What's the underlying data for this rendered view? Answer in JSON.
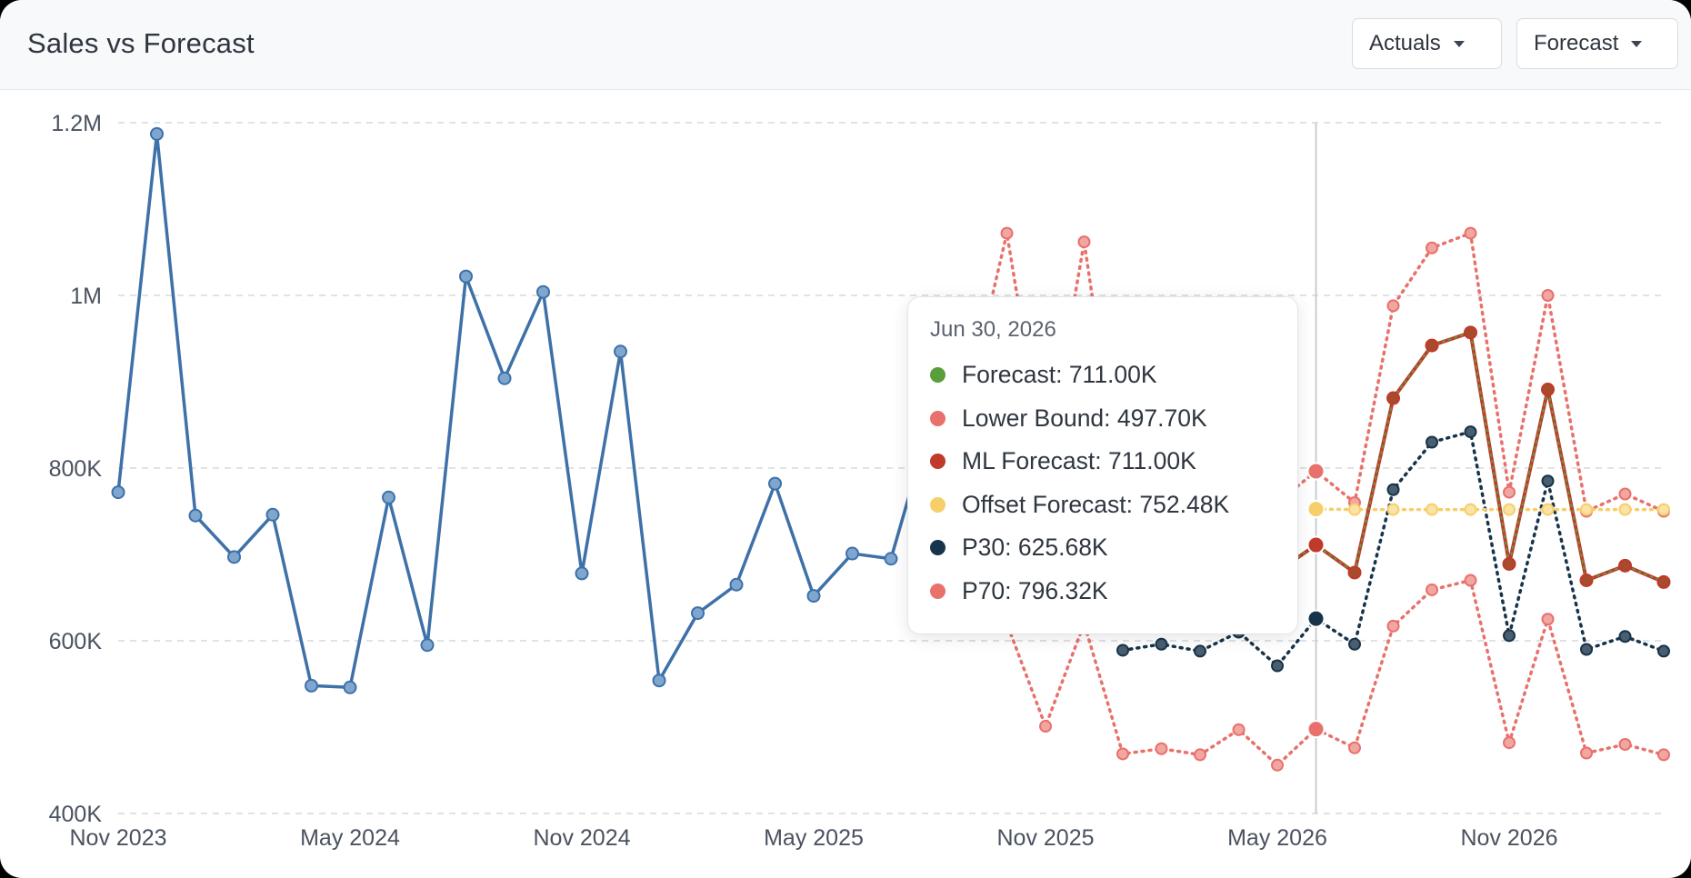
{
  "header": {
    "title": "Sales vs Forecast",
    "actuals_label": "Actuals",
    "forecast_label": "Forecast"
  },
  "colors": {
    "actuals": "#3e71a8",
    "forecast": "#5a9e3a",
    "lower_bound": "#e8716c",
    "ml_forecast": "#c0392b",
    "offset_forecast": "#f6cf6b",
    "p30": "#17344a",
    "p70": "#e8716c",
    "grid": "#d5d8dc",
    "axis_text": "#4a5260"
  },
  "tooltip": {
    "date": "Jun 30, 2026",
    "rows": [
      {
        "text": "Forecast: 711.00K",
        "color": "#5a9e3a"
      },
      {
        "text": "Lower Bound: 497.70K",
        "color": "#e8716c"
      },
      {
        "text": "ML Forecast: 711.00K",
        "color": "#c0392b"
      },
      {
        "text": "Offset Forecast: 752.48K",
        "color": "#f6cf6b"
      },
      {
        "text": "P30: 625.68K",
        "color": "#17344a"
      },
      {
        "text": "P70: 796.32K",
        "color": "#e8716c"
      }
    ]
  },
  "chart_data": {
    "type": "line",
    "title": "Sales vs Forecast",
    "x_range": [
      "2023-11",
      "2027-03"
    ],
    "y_range": [
      400000,
      1200000
    ],
    "y_ticks": [
      {
        "value": 400000,
        "label": "400K"
      },
      {
        "value": 600000,
        "label": "600K"
      },
      {
        "value": 800000,
        "label": "800K"
      },
      {
        "value": 1000000,
        "label": "1M"
      },
      {
        "value": 1200000,
        "label": "1.2M"
      }
    ],
    "x_ticks": [
      {
        "value": "2023-11",
        "label": "Nov 2023"
      },
      {
        "value": "2024-05",
        "label": "May 2024"
      },
      {
        "value": "2024-11",
        "label": "Nov 2024"
      },
      {
        "value": "2025-05",
        "label": "May 2025"
      },
      {
        "value": "2025-11",
        "label": "Nov 2025"
      },
      {
        "value": "2026-05",
        "label": "May 2026"
      },
      {
        "value": "2026-11",
        "label": "Nov 2026"
      }
    ],
    "grid": true,
    "hover_x": "2026-06",
    "series": [
      {
        "key": "actuals",
        "style": "solid",
        "x": [
          "2023-11",
          "2023-12",
          "2024-01",
          "2024-02",
          "2024-03",
          "2024-04",
          "2024-05",
          "2024-06",
          "2024-07",
          "2024-08",
          "2024-09",
          "2024-10",
          "2024-11",
          "2024-12",
          "2025-01",
          "2025-02",
          "2025-03",
          "2025-04",
          "2025-05",
          "2025-06",
          "2025-07",
          "2025-08",
          "2025-09"
        ],
        "y": [
          772000,
          1187000,
          745000,
          697000,
          746000,
          548000,
          546000,
          766000,
          595000,
          1022000,
          904000,
          1004000,
          678000,
          935000,
          554000,
          632000,
          665000,
          782000,
          652000,
          701000,
          695000,
          850000,
          880000
        ]
      },
      {
        "key": "upper",
        "style": "dotted",
        "x": [
          "2025-09",
          "2025-10",
          "2025-11",
          "2025-12",
          "2026-01",
          "2026-02",
          "2026-03",
          "2026-04",
          "2026-05",
          "2026-06",
          "2026-07",
          "2026-08",
          "2026-09",
          "2026-10",
          "2026-11",
          "2026-12",
          "2027-01",
          "2027-02",
          "2027-03"
        ],
        "y": [
          880000,
          1072000,
          800000,
          1062000,
          760000,
          760000,
          760000,
          750000,
          760000,
          796320,
          760000,
          988000,
          1055000,
          1072000,
          772000,
          1000000,
          750000,
          770000,
          750000
        ]
      },
      {
        "key": "lower",
        "style": "dotted",
        "x": [
          "2025-09",
          "2025-10",
          "2025-11",
          "2025-12",
          "2026-01",
          "2026-02",
          "2026-03",
          "2026-04",
          "2026-05",
          "2026-06",
          "2026-07",
          "2026-08",
          "2026-09",
          "2026-10",
          "2026-11",
          "2026-12",
          "2027-01",
          "2027-02",
          "2027-03"
        ],
        "y": [
          760000,
          620000,
          501000,
          620000,
          469000,
          475000,
          468000,
          497000,
          456000,
          497700,
          476000,
          617000,
          659000,
          670000,
          482000,
          625000,
          470000,
          480000,
          468000
        ]
      },
      {
        "key": "p30",
        "style": "dotted",
        "x": [
          "2026-01",
          "2026-02",
          "2026-03",
          "2026-04",
          "2026-05",
          "2026-06",
          "2026-07",
          "2026-08",
          "2026-09",
          "2026-10",
          "2026-11",
          "2026-12",
          "2027-01",
          "2027-02",
          "2027-03"
        ],
        "y": [
          589000,
          596000,
          588000,
          610000,
          571000,
          625680,
          596000,
          775000,
          830000,
          842000,
          606000,
          785000,
          590000,
          605000,
          588000
        ]
      },
      {
        "key": "offset",
        "style": "dotted",
        "x": [
          "2026-06",
          "2026-07",
          "2026-08",
          "2026-09",
          "2026-10",
          "2026-11",
          "2026-12",
          "2027-01",
          "2027-02",
          "2027-03"
        ],
        "y": [
          752480,
          752000,
          752000,
          752000,
          752000,
          752000,
          752000,
          752000,
          752000,
          752000
        ]
      },
      {
        "key": "forecast",
        "style": "solid",
        "x": [
          "2026-05",
          "2026-06",
          "2026-07",
          "2026-08",
          "2026-09",
          "2026-10",
          "2026-11",
          "2026-12",
          "2027-01",
          "2027-02",
          "2027-03"
        ],
        "y": [
          680000,
          711000,
          679000,
          881000,
          942000,
          957000,
          689000,
          891000,
          670000,
          687000,
          668000
        ]
      }
    ]
  }
}
